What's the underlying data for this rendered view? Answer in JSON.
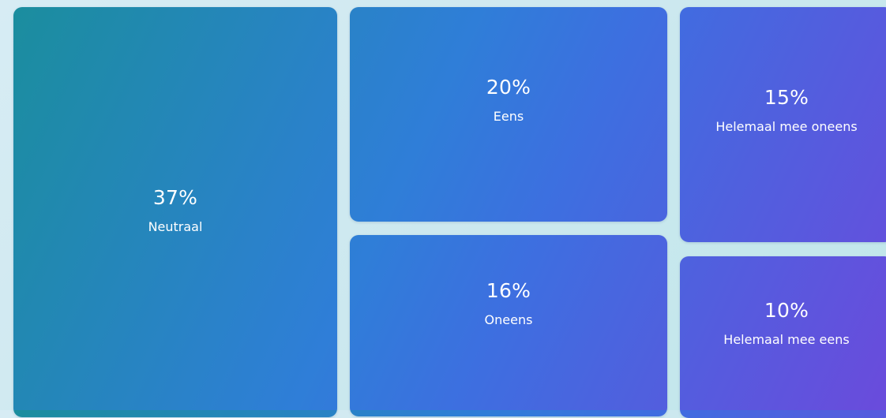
{
  "chart_data": {
    "type": "treemap",
    "title": "",
    "items": [
      {
        "label": "Neutraal",
        "value": 37,
        "value_text": "37%"
      },
      {
        "label": "Eens",
        "value": 20,
        "value_text": "20%"
      },
      {
        "label": "Oneens",
        "value": 16,
        "value_text": "16%"
      },
      {
        "label": "Helemaal mee oneens",
        "value": 15,
        "value_text": "15%"
      },
      {
        "label": "Helemaal mee eens",
        "value": 10,
        "value_text": "10%"
      }
    ],
    "colors": {
      "start": "#1a8e9c",
      "mid": "#3d6fe0",
      "end": "#6a4bdc",
      "text": "#ffffff",
      "background": "#cfe9f0"
    }
  }
}
